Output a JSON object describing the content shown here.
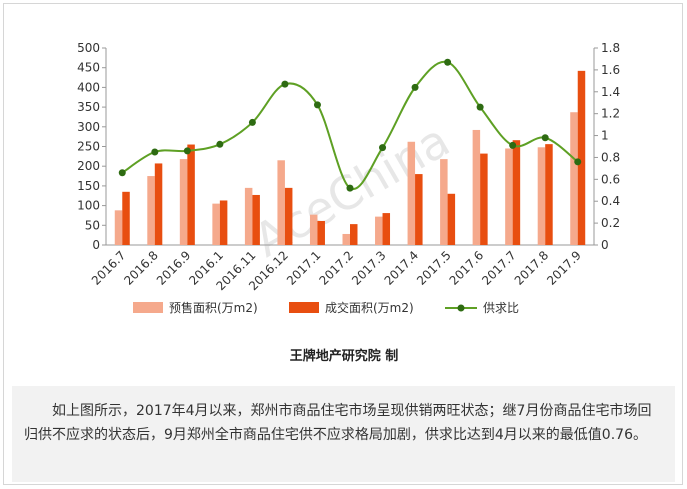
{
  "chart_data": {
    "type": "bar",
    "categories": [
      "2016.7",
      "2016.8",
      "2016.9",
      "2016.1",
      "2016.11",
      "2016.12",
      "2017.1",
      "2017.2",
      "2017.3",
      "2017.4",
      "2017.5",
      "2017.6",
      "2017.7",
      "2017.8",
      "2017.9"
    ],
    "series": [
      {
        "name": "预售面积(万m2)",
        "type": "bar",
        "axis": "left",
        "color": "#f5a98c",
        "values": [
          88,
          175,
          218,
          105,
          145,
          215,
          77,
          28,
          72,
          262,
          218,
          292,
          245,
          248,
          337
        ]
      },
      {
        "name": "成交面积(万m2)",
        "type": "bar",
        "axis": "left",
        "color": "#e84e10",
        "values": [
          135,
          207,
          255,
          113,
          127,
          145,
          61,
          53,
          81,
          180,
          130,
          232,
          266,
          256,
          442
        ]
      },
      {
        "name": "供求比",
        "type": "line",
        "axis": "right",
        "color": "#5ea024",
        "values": [
          0.66,
          0.85,
          0.86,
          0.92,
          1.12,
          1.47,
          1.28,
          0.52,
          0.89,
          1.44,
          1.67,
          1.26,
          0.91,
          0.98,
          0.76
        ]
      }
    ],
    "ylim_left": [
      0,
      500
    ],
    "ylim_right": [
      0,
      1.8
    ],
    "yticks_left": [
      "0",
      "50",
      "100",
      "150",
      "200",
      "250",
      "300",
      "350",
      "400",
      "450",
      "500"
    ],
    "yticks_right": [
      "0",
      "0.2",
      "0.4",
      "0.6",
      "0.8",
      "1",
      "1.2",
      "1.4",
      "1.6",
      "1.8"
    ],
    "grid": false,
    "legend_position": "bottom"
  },
  "watermark": "AceChina",
  "source_note": "王牌地产研究院 制",
  "caption": "如上图所示，2017年4月以来，郑州市商品住宅市场呈现供销两旺状态；继7月份商品住宅市场回归供不应求的状态后，9月郑州全市商品住宅供不应求格局加剧，供求比达到4月以来的最低值0.76。"
}
